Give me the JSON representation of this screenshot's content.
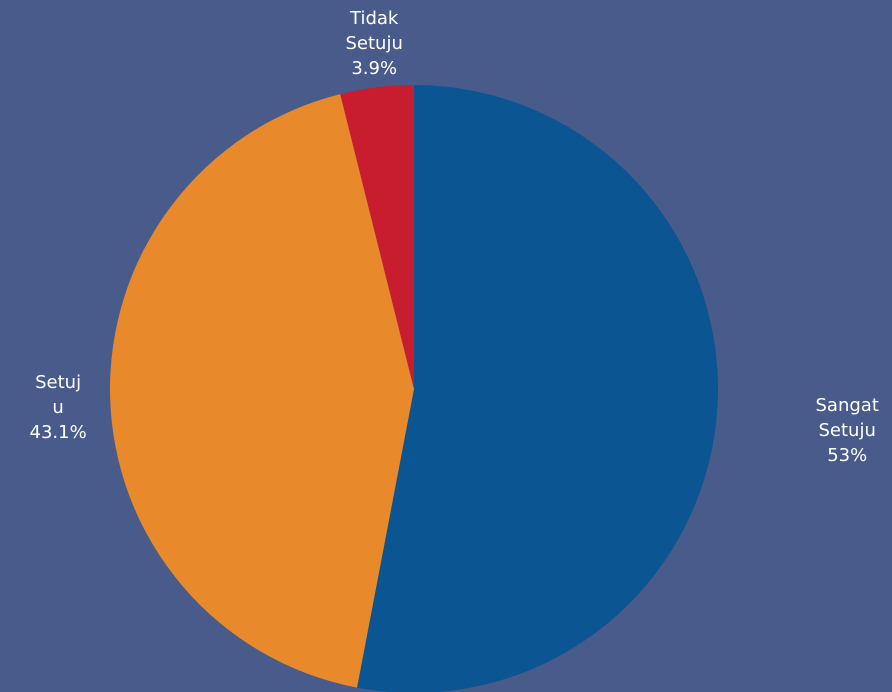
{
  "chart_data": {
    "type": "pie",
    "start_angle_deg": 0,
    "direction": "clockwise",
    "slices": [
      {
        "label_lines": [
          "Sangat",
          "Setuju"
        ],
        "percent_label": "53%",
        "value": 53.0,
        "color": "#0a5592"
      },
      {
        "label_lines": [
          "Setuj",
          "u"
        ],
        "percent_label": "43.1%",
        "value": 43.1,
        "color": "#e8892b"
      },
      {
        "label_lines": [
          "Tidak",
          "Setuju"
        ],
        "percent_label": "3.9%",
        "value": 3.9,
        "color": "#c81d2e"
      }
    ]
  }
}
